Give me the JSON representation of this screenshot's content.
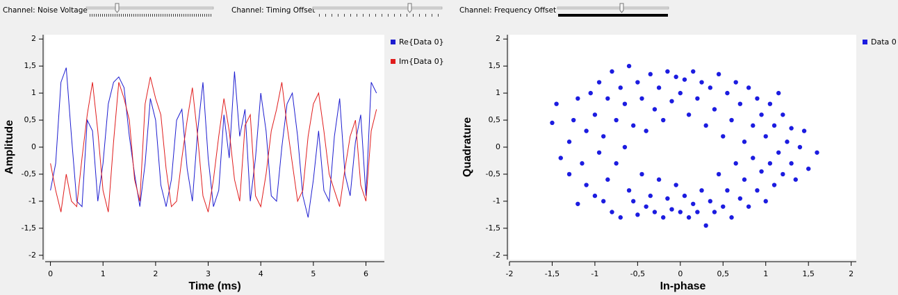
{
  "controls": [
    {
      "label": "Channel: Noise Voltage"
    },
    {
      "label": "Channel: Timing Offset"
    },
    {
      "label": "Channel: Frequency Offset"
    }
  ],
  "chart_data": [
    {
      "type": "line",
      "xlabel": "Time (ms)",
      "ylabel": "Amplitude",
      "x": [
        0,
        0.1,
        0.2,
        0.3,
        0.4,
        0.5,
        0.6,
        0.7,
        0.8,
        0.9,
        1.0,
        1.1,
        1.2,
        1.3,
        1.4,
        1.5,
        1.6,
        1.7,
        1.8,
        1.9,
        2.0,
        2.1,
        2.2,
        2.3,
        2.4,
        2.5,
        2.6,
        2.7,
        2.8,
        2.9,
        3.0,
        3.1,
        3.2,
        3.3,
        3.4,
        3.5,
        3.6,
        3.7,
        3.8,
        3.9,
        4.0,
        4.1,
        4.2,
        4.3,
        4.4,
        4.5,
        4.6,
        4.7,
        4.8,
        4.9,
        5.0,
        5.1,
        5.2,
        5.3,
        5.4,
        5.5,
        5.6,
        5.7,
        5.8,
        5.9,
        6.0,
        6.1,
        6.2
      ],
      "series": [
        {
          "name": "Re{Data 0}",
          "color": "#1c1cd0",
          "values": [
            -0.8,
            -0.3,
            1.2,
            1.47,
            0.2,
            -1.0,
            -1.1,
            0.5,
            0.3,
            -1.0,
            -0.3,
            0.8,
            1.2,
            1.3,
            1.1,
            0.2,
            -0.5,
            -1.1,
            -0.3,
            0.9,
            0.5,
            -0.7,
            -1.1,
            -0.6,
            0.5,
            0.7,
            -0.4,
            -1.0,
            0.3,
            1.2,
            -0.2,
            -1.1,
            -0.8,
            0.6,
            -0.2,
            1.4,
            0.2,
            0.7,
            -1.0,
            -0.2,
            1.0,
            0.3,
            -0.9,
            -1.0,
            0.0,
            0.8,
            1.0,
            0.2,
            -0.9,
            -1.3,
            -0.6,
            0.3,
            -0.8,
            -1.0,
            0.2,
            0.9,
            -0.5,
            -0.9,
            0.1,
            0.6,
            -0.9,
            1.2,
            1.0
          ]
        },
        {
          "name": "Im{Data 0}",
          "color": "#e01c1c",
          "values": [
            -0.3,
            -0.8,
            -1.2,
            -0.5,
            -1.0,
            -1.1,
            -0.2,
            0.6,
            1.2,
            0.3,
            -0.8,
            -1.2,
            0.1,
            1.2,
            0.9,
            0.5,
            -0.6,
            -1.0,
            0.8,
            1.3,
            0.9,
            0.6,
            -0.4,
            -1.1,
            -1.0,
            -0.2,
            0.5,
            1.1,
            0.2,
            -0.9,
            -1.2,
            -0.6,
            0.2,
            0.9,
            0.3,
            -0.6,
            -1.0,
            0.4,
            0.6,
            -0.9,
            -1.1,
            -0.5,
            0.3,
            0.7,
            1.2,
            0.4,
            -0.3,
            -1.0,
            -0.8,
            0.2,
            0.8,
            1.0,
            0.3,
            -0.5,
            -0.8,
            -1.1,
            -0.4,
            0.2,
            0.5,
            -0.7,
            -1.0,
            0.3,
            0.7
          ]
        }
      ],
      "xlim": [
        -0.1,
        6.35
      ],
      "ylim": [
        -2.08,
        2.08
      ],
      "xticks": [
        0,
        1,
        2,
        3,
        4,
        5,
        6
      ],
      "yticks": [
        -2,
        {
          "value": -1.5,
          "label": "-1,5"
        },
        -1,
        {
          "value": -0.5,
          "label": "-0,5"
        },
        0,
        {
          "value": 0.5,
          "label": "0,5"
        },
        1,
        {
          "value": 1.5,
          "label": "1,5"
        },
        2
      ]
    },
    {
      "type": "scatter",
      "xlabel": "In-phase",
      "ylabel": "Quadrature",
      "series": [
        {
          "name": "Data 0",
          "color": "#1c1ce0",
          "x": [
            -1.5,
            -1.45,
            -1.4,
            -1.3,
            -1.3,
            -1.25,
            -1.2,
            -1.2,
            -1.15,
            -1.1,
            -1.1,
            -1.05,
            -1.0,
            -1.0,
            -0.95,
            -0.95,
            -0.9,
            -0.9,
            -0.85,
            -0.85,
            -0.8,
            -0.8,
            -0.75,
            -0.75,
            -0.7,
            -0.7,
            -0.65,
            -0.65,
            -0.6,
            -0.6,
            -0.55,
            -0.55,
            -0.5,
            -0.5,
            -0.45,
            -0.45,
            -0.4,
            -0.4,
            -0.35,
            -0.35,
            -0.3,
            -0.3,
            -0.25,
            -0.25,
            -0.2,
            -0.2,
            -0.15,
            -0.15,
            -0.1,
            -0.1,
            -0.05,
            -0.05,
            0.0,
            0.0,
            0.05,
            0.05,
            0.1,
            0.1,
            0.15,
            0.15,
            0.2,
            0.2,
            0.25,
            0.25,
            0.3,
            0.3,
            0.35,
            0.35,
            0.4,
            0.4,
            0.45,
            0.45,
            0.5,
            0.5,
            0.55,
            0.55,
            0.6,
            0.6,
            0.65,
            0.65,
            0.7,
            0.7,
            0.75,
            0.75,
            0.8,
            0.8,
            0.85,
            0.85,
            0.9,
            0.9,
            0.95,
            0.95,
            1.0,
            1.0,
            1.05,
            1.05,
            1.1,
            1.1,
            1.15,
            1.15,
            1.2,
            1.2,
            1.25,
            1.3,
            1.3,
            1.35,
            1.4,
            1.45,
            1.5,
            1.6
          ],
          "values": [
            0.45,
            0.8,
            -0.2,
            0.1,
            -0.5,
            0.5,
            -1.05,
            0.9,
            -0.3,
            0.3,
            -0.7,
            1.0,
            -0.9,
            0.6,
            -0.1,
            1.2,
            -1.0,
            0.2,
            0.9,
            -0.6,
            1.4,
            -1.2,
            0.5,
            -0.3,
            1.1,
            -1.3,
            0.0,
            0.8,
            -0.8,
            1.5,
            -1.0,
            0.4,
            1.2,
            -1.25,
            -0.5,
            0.9,
            -1.1,
            0.3,
            1.35,
            -0.9,
            0.7,
            -1.2,
            1.1,
            -0.6,
            -1.3,
            0.5,
            1.4,
            -0.95,
            0.85,
            -1.15,
            1.3,
            -0.7,
            1.0,
            -1.2,
            1.25,
            -0.9,
            0.6,
            -1.3,
            1.4,
            -1.05,
            0.9,
            -1.2,
            1.2,
            -0.8,
            0.4,
            -1.45,
            1.1,
            -1.0,
            0.7,
            -1.2,
            1.35,
            -0.5,
            0.2,
            -1.1,
            1.0,
            -0.8,
            0.5,
            -1.3,
            1.2,
            -0.3,
            0.8,
            -0.95,
            0.1,
            -0.6,
            1.1,
            -1.1,
            0.4,
            -0.2,
            0.9,
            -0.8,
            -0.45,
            0.6,
            0.2,
            -1.0,
            0.8,
            -0.3,
            0.4,
            -0.7,
            1.0,
            -0.1,
            0.6,
            -0.5,
            0.1,
            0.35,
            -0.3,
            -0.6,
            0.0,
            0.3,
            -0.4,
            -0.1
          ]
        }
      ],
      "xlim": [
        -2.0,
        2.06
      ],
      "ylim": [
        -2.08,
        2.08
      ],
      "xticks": [
        -2,
        {
          "value": -1.5,
          "label": "-1,5"
        },
        -1,
        {
          "value": -0.5,
          "label": "-0,5"
        },
        0,
        {
          "value": 0.5,
          "label": "0,5"
        },
        1,
        {
          "value": 1.5,
          "label": "1,5"
        },
        2
      ],
      "yticks": [
        -2,
        {
          "value": -1.5,
          "label": "-1,5"
        },
        -1,
        {
          "value": -0.5,
          "label": "-0,5"
        },
        0,
        {
          "value": 0.5,
          "label": "0,5"
        },
        1,
        {
          "value": 1.5,
          "label": "1,5"
        },
        2
      ]
    }
  ]
}
